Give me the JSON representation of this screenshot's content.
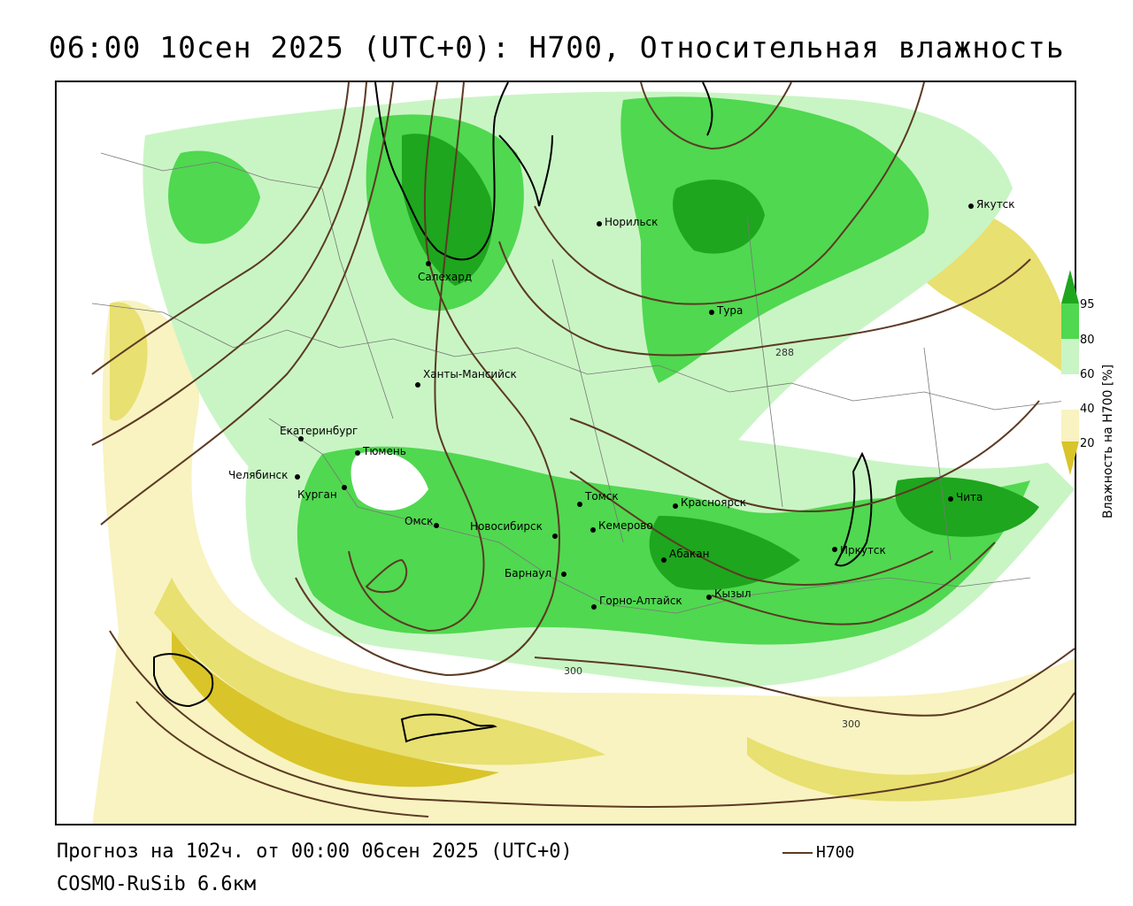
{
  "title": "06:00 10сен 2025 (UTC+0): Н700, Относительная влажность",
  "footer": {
    "forecast": "Прогноз на 102ч. от 00:00 06сен 2025 (UTC+0)",
    "model": "COSMO-RuSib 6.6км"
  },
  "legend": {
    "line_label": "Н700",
    "line_color": "#5c3a24"
  },
  "colorbar": {
    "title": "Влажность на Н700 [%]",
    "ticks": [
      "95",
      "80",
      "60",
      "40",
      "20"
    ],
    "colors": {
      "very_dry": "#d9c42a",
      "dry": "#e8e070",
      "slightly_dry": "#f8f3c0",
      "neutral": "#ffffff",
      "moist": "#c9f5c4",
      "wet": "#50d850",
      "very_wet": "#1ea61e",
      "saturated": "#0a7a0a"
    }
  },
  "cities": [
    {
      "name": "Якутск"
    },
    {
      "name": "Норильск"
    },
    {
      "name": "Салехард"
    },
    {
      "name": "Тура"
    },
    {
      "name": "Ханты-Мансийск"
    },
    {
      "name": "Екатеринбург"
    },
    {
      "name": "Тюмень"
    },
    {
      "name": "Челябинск"
    },
    {
      "name": "Курган"
    },
    {
      "name": "Томск"
    },
    {
      "name": "Красноярск"
    },
    {
      "name": "Омск"
    },
    {
      "name": "Новосибирск"
    },
    {
      "name": "Кемерово"
    },
    {
      "name": "Абакан"
    },
    {
      "name": "Иркутск"
    },
    {
      "name": "Чита"
    },
    {
      "name": "Барнаул"
    },
    {
      "name": "Горно-Алтайск"
    },
    {
      "name": "Кызыл"
    }
  ],
  "isoline_labels": [
    "288",
    "300",
    "300"
  ]
}
